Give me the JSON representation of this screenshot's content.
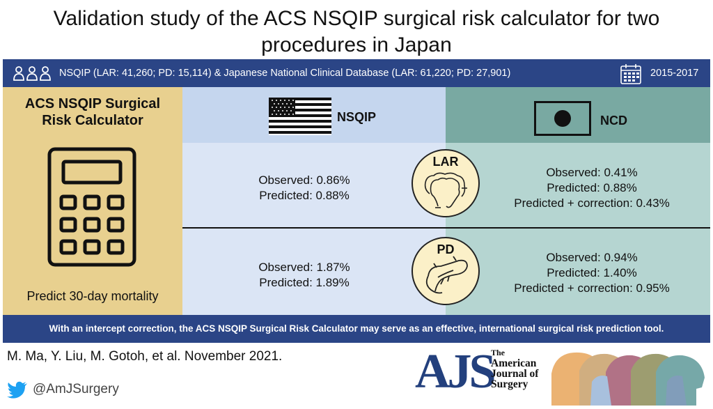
{
  "title": "Validation study of the ACS NSQIP surgical risk calculator for two procedures in Japan",
  "banner": {
    "data_text": "NSQIP (LAR: 41,260; PD: 15,114) & Japanese National Clinical Database (LAR: 61,220; PD: 27,901)",
    "years": "2015-2017",
    "people_icon": "people-group-icon",
    "calendar_icon": "calendar-icon",
    "color": "#2b4586"
  },
  "left_panel": {
    "title": "ACS NSQIP Surgical Risk Calculator",
    "caption": "Predict 30-day mortality",
    "icon": "calculator-icon",
    "color": "#e8d08f"
  },
  "columns": {
    "nsqip": {
      "label": "NSQIP",
      "icon": "us-flag-icon",
      "color": "#c5d6ee"
    },
    "ncd": {
      "label": "NCD",
      "icon": "japan-flag-icon",
      "color": "#79a9a2"
    }
  },
  "lar": {
    "label": "LAR",
    "icon": "colon-icon",
    "nsqip_observed": "Observed: 0.86%",
    "nsqip_predicted": "Predicted: 0.88%",
    "ncd_observed": "Observed: 0.41%",
    "ncd_predicted": "Predicted: 0.88%",
    "ncd_corrected": "Predicted + correction: 0.43%"
  },
  "pd": {
    "label": "PD",
    "icon": "pancreas-icon",
    "nsqip_observed": "Observed: 1.87%",
    "nsqip_predicted": "Predicted: 1.89%",
    "ncd_observed": "Observed: 0.94%",
    "ncd_predicted": "Predicted: 1.40%",
    "ncd_corrected": "Predicted + correction: 0.95%"
  },
  "conclusion": "With an intercept correction, the ACS NSQIP Surgical Risk Calculator may serve as an effective, international surgical risk prediction tool.",
  "footer": {
    "authors": "M. Ma, Y. Liu, M. Gotoh, et al. November 2021.",
    "twitter_icon": "twitter-bird-icon",
    "twitter_handle": "@AmJSurgery",
    "journal_logo": "AJS",
    "journal_the": "The",
    "journal_line1": "American",
    "journal_line2": "Journal of",
    "journal_line3": "Surgery",
    "heads_logo": "overlapping-heads-logo-icon"
  }
}
